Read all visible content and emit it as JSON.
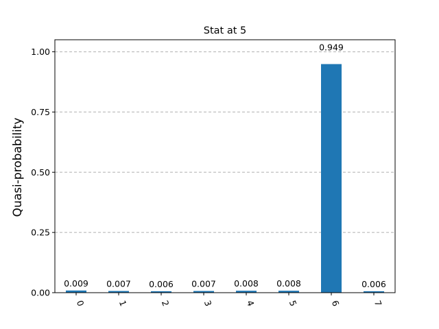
{
  "chart_data": {
    "type": "bar",
    "title": "Stat at 5",
    "xlabel": "",
    "ylabel": "Quasi-probability",
    "categories": [
      "0",
      "1",
      "2",
      "3",
      "4",
      "5",
      "6",
      "7"
    ],
    "values": [
      0.009,
      0.007,
      0.006,
      0.007,
      0.008,
      0.008,
      0.949,
      0.006
    ],
    "bar_labels": [
      "0.009",
      "0.007",
      "0.006",
      "0.007",
      "0.008",
      "0.008",
      "0.949",
      "0.006"
    ],
    "ylim": [
      0,
      1.05
    ],
    "yticks": [
      0.0,
      0.25,
      0.5,
      0.75,
      1.0
    ],
    "ytick_labels": [
      "0.00",
      "0.25",
      "0.50",
      "0.75",
      "1.00"
    ],
    "grid": "y-dashed",
    "bar_color": "#1f77b4",
    "x_tick_rotation": "70deg"
  }
}
